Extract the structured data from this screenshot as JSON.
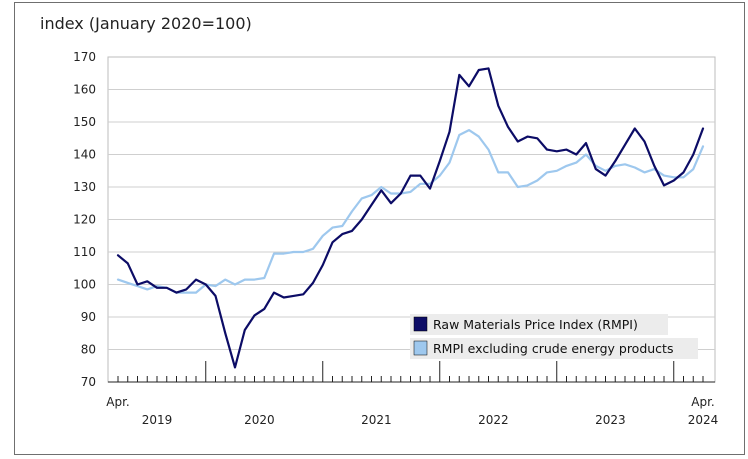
{
  "chart_data": {
    "type": "line",
    "title": "",
    "ylabel": "index (January 2020=100)",
    "xlabel": "",
    "ylim": [
      70,
      170
    ],
    "yticks": [
      70,
      80,
      90,
      100,
      110,
      120,
      130,
      140,
      150,
      160,
      170
    ],
    "year_labels": [
      "2019",
      "2020",
      "2021",
      "2022",
      "2023",
      "2024"
    ],
    "start_label": "Apr.",
    "end_label": "Apr.",
    "colors": {
      "rmpi": "#0c0c66",
      "excl": "#9ec8ee",
      "grid": "#cfcfcf",
      "axis": "#222222"
    },
    "series": [
      {
        "name": "Raw Materials Price Index (RMPI)",
        "values": [
          109,
          106.5,
          100,
          101,
          99,
          99,
          97.5,
          98.5,
          101.5,
          100,
          96.5,
          85,
          74.5,
          86,
          90.5,
          92.5,
          97.5,
          96,
          96.5,
          97,
          100.5,
          106,
          113,
          115.5,
          116.5,
          120,
          124.5,
          129,
          125,
          128,
          133.5,
          133.5,
          129.5,
          138,
          147,
          164.5,
          161,
          166,
          166.5,
          155,
          148.5,
          144,
          145.5,
          145,
          141.5,
          141,
          141.5,
          140,
          143.5,
          135.5,
          133.5,
          138,
          143,
          148,
          144,
          136.5,
          130.5,
          132,
          134.5,
          140,
          148
        ]
      },
      {
        "name": "RMPI excluding crude energy products",
        "values": [
          101.5,
          100.5,
          99.5,
          98.5,
          99.5,
          99,
          97.5,
          97.5,
          97.5,
          100,
          99.5,
          101.5,
          100,
          101.5,
          101.5,
          102,
          109.5,
          109.5,
          110,
          110,
          111,
          115,
          117.5,
          118,
          122.5,
          126.5,
          127.5,
          130,
          128,
          128,
          128.5,
          131,
          131,
          133.5,
          137.5,
          146,
          147.5,
          145.5,
          141.5,
          134.5,
          134.5,
          130,
          130.5,
          132,
          134.5,
          135,
          136.5,
          137.5,
          140,
          136.5,
          135,
          136.5,
          137,
          136,
          134.5,
          135.5,
          133.5,
          133,
          133,
          135.5,
          142.5
        ]
      }
    ]
  }
}
